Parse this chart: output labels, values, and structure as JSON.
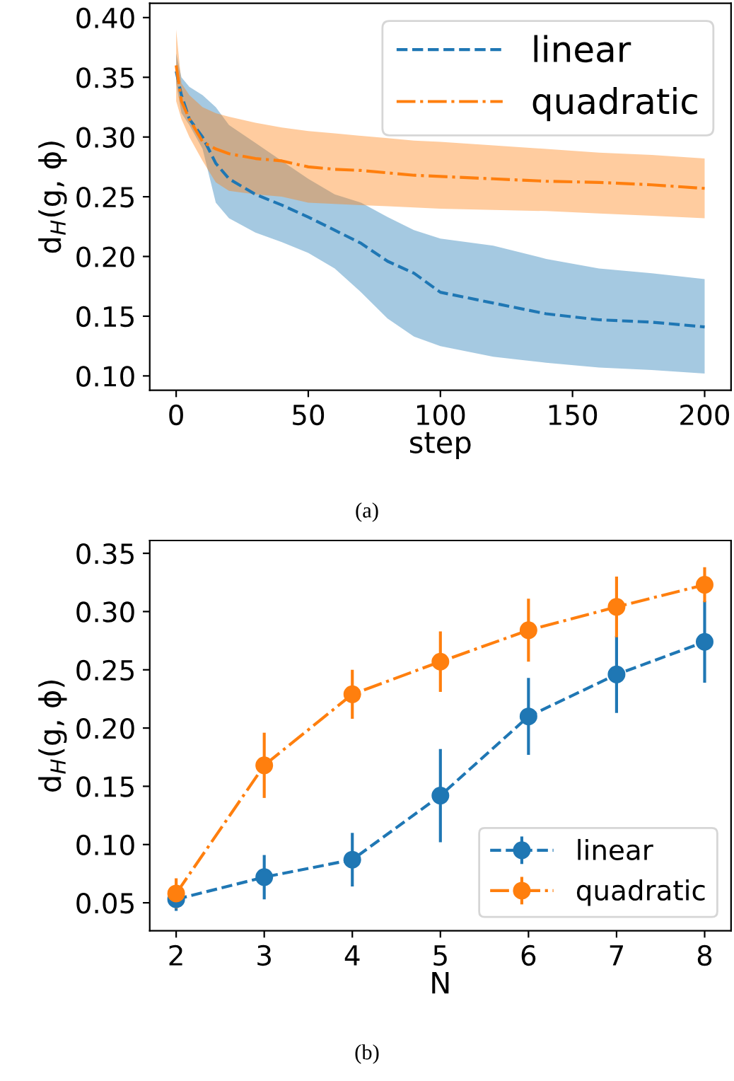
{
  "chart_data": [
    {
      "type": "line",
      "ylabel": "d$_{H}$(g, ϕ)",
      "xlabel": "step",
      "annotations": [
        "(a)"
      ],
      "xlim": [
        -10,
        210
      ],
      "ylim": [
        0.088,
        0.412
      ],
      "xticks": [
        0,
        50,
        100,
        150,
        200
      ],
      "yticks": [
        {
          "value": 0.1,
          "label": "0.10"
        },
        0.15,
        {
          "value": 0.2,
          "label": "0.20"
        },
        0.25,
        {
          "value": 0.3,
          "label": "0.30"
        },
        0.35,
        {
          "value": 0.4,
          "label": "0.40"
        }
      ],
      "grid": false,
      "legend": "top right",
      "marker": "none",
      "series": [
        {
          "name": "linear",
          "color": "#1f77b4",
          "line_style": "dashed",
          "x": [
            0,
            2,
            5,
            10,
            15,
            20,
            30,
            40,
            50,
            60,
            70,
            80,
            90,
            100,
            120,
            140,
            160,
            180,
            200
          ],
          "values": [
            0.355,
            0.335,
            0.315,
            0.3,
            0.278,
            0.265,
            0.252,
            0.243,
            0.233,
            0.222,
            0.211,
            0.196,
            0.186,
            0.17,
            0.161,
            0.152,
            0.147,
            0.145,
            0.141
          ],
          "lower": [
            0.345,
            0.32,
            0.31,
            0.29,
            0.245,
            0.232,
            0.22,
            0.212,
            0.203,
            0.19,
            0.17,
            0.148,
            0.133,
            0.125,
            0.116,
            0.111,
            0.107,
            0.105,
            0.102
          ],
          "upper": [
            0.37,
            0.35,
            0.342,
            0.335,
            0.325,
            0.31,
            0.295,
            0.28,
            0.265,
            0.252,
            0.245,
            0.233,
            0.222,
            0.215,
            0.209,
            0.198,
            0.19,
            0.186,
            0.181
          ]
        },
        {
          "name": "quadratic",
          "color": "#ff7f0e",
          "line_style": "dashdot",
          "x": [
            0,
            2,
            5,
            10,
            15,
            20,
            30,
            40,
            50,
            60,
            70,
            80,
            90,
            100,
            120,
            140,
            160,
            180,
            200
          ],
          "values": [
            0.36,
            0.33,
            0.315,
            0.296,
            0.29,
            0.286,
            0.282,
            0.28,
            0.275,
            0.273,
            0.272,
            0.27,
            0.268,
            0.267,
            0.265,
            0.263,
            0.262,
            0.26,
            0.257
          ],
          "lower": [
            0.33,
            0.315,
            0.3,
            0.28,
            0.262,
            0.255,
            0.252,
            0.25,
            0.245,
            0.244,
            0.243,
            0.242,
            0.241,
            0.24,
            0.239,
            0.238,
            0.236,
            0.234,
            0.232
          ],
          "upper": [
            0.39,
            0.345,
            0.335,
            0.325,
            0.32,
            0.317,
            0.312,
            0.308,
            0.305,
            0.303,
            0.301,
            0.299,
            0.297,
            0.296,
            0.293,
            0.29,
            0.287,
            0.285,
            0.282
          ]
        }
      ]
    },
    {
      "type": "line",
      "ylabel": "d$_{H}$(g, ϕ)",
      "xlabel": "N",
      "annotations": [
        "(b)"
      ],
      "x": [
        2,
        3,
        4,
        5,
        6,
        7,
        8
      ],
      "xlim": [
        1.7,
        8.3
      ],
      "ylim": [
        0.026,
        0.361
      ],
      "xticks": [
        2,
        3,
        4,
        5,
        6,
        7,
        8
      ],
      "yticks": [
        0.05,
        {
          "value": 0.1,
          "label": "0.10"
        },
        0.15,
        {
          "value": 0.2,
          "label": "0.20"
        },
        0.25,
        {
          "value": 0.3,
          "label": "0.30"
        },
        0.35
      ],
      "grid": false,
      "legend": "bottom right",
      "marker": "circle",
      "series": [
        {
          "name": "linear",
          "color": "#1f77b4",
          "line_style": "dashed",
          "values": [
            0.053,
            0.072,
            0.087,
            0.142,
            0.21,
            0.246,
            0.274
          ],
          "errors": [
            0.01,
            0.019,
            0.023,
            0.04,
            0.033,
            0.033,
            0.035
          ]
        },
        {
          "name": "quadratic",
          "color": "#ff7f0e",
          "line_style": "dashdot",
          "values": [
            0.058,
            0.168,
            0.229,
            0.257,
            0.284,
            0.304,
            0.323
          ],
          "errors": [
            0.013,
            0.028,
            0.021,
            0.026,
            0.027,
            0.026,
            0.015
          ]
        }
      ]
    }
  ]
}
